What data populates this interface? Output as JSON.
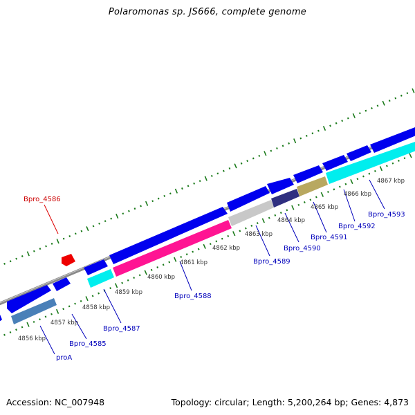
{
  "title": "Polaromonas sp. JS666, complete genome",
  "footer": {
    "accession": "Accession: NC_007948",
    "summary": "Topology: circular; Length: 5,200,264 bp; Genes: 4,873"
  },
  "colors": {
    "cds_forward": "#0000ee",
    "backbone": "#8c8c8c",
    "tick": "#1a7a1a",
    "kbp_label": "#333333",
    "gene_label": "#0000bb",
    "highlight_label": "#cc0000",
    "highlight_gene": "#ee0000"
  },
  "scale_labels": [
    "4856 kbp",
    "4857 kbp",
    "4858 kbp",
    "4859 kbp",
    "4860 kbp",
    "4861 kbp",
    "4862 kbp",
    "4863 kbp",
    "4864 kbp",
    "4865 kbp",
    "4866 kbp",
    "4867 kbp"
  ],
  "gene_labels": {
    "Bpro_4586": "Bpro_4586",
    "proA": "proA",
    "Bpro_4585": "Bpro_4585",
    "Bpro_4587": "Bpro_4587",
    "Bpro_4588": "Bpro_4588",
    "Bpro_4589": "Bpro_4589",
    "Bpro_4590": "Bpro_4590",
    "Bpro_4591": "Bpro_4591",
    "Bpro_4592": "Bpro_4592",
    "Bpro_4593": "Bpro_4593"
  }
}
